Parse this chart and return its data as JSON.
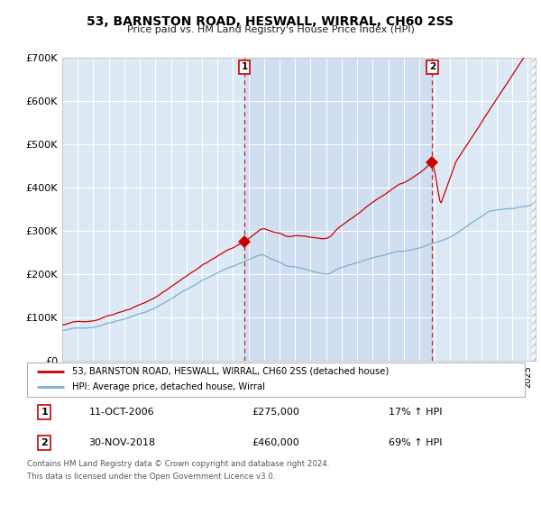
{
  "title": "53, BARNSTON ROAD, HESWALL, WIRRAL, CH60 2SS",
  "subtitle": "Price paid vs. HM Land Registry's House Price Index (HPI)",
  "legend_label_red": "53, BARNSTON ROAD, HESWALL, WIRRAL, CH60 2SS (detached house)",
  "legend_label_blue": "HPI: Average price, detached house, Wirral",
  "sale1_date": "11-OCT-2006",
  "sale1_price": 275000,
  "sale1_label": "1",
  "sale1_pct": "17% ↑ HPI",
  "sale2_date": "30-NOV-2018",
  "sale2_price": 460000,
  "sale2_label": "2",
  "sale2_pct": "69% ↑ HPI",
  "footer1": "Contains HM Land Registry data © Crown copyright and database right 2024.",
  "footer2": "This data is licensed under the Open Government Licence v3.0.",
  "ylim_max": 700000,
  "background_color": "#ffffff",
  "plot_bg_color": "#dce9f5",
  "grid_color": "#c8d8e8",
  "red_color": "#cc0000",
  "blue_color": "#7ab0d4",
  "shade_color": "#c8d8ef"
}
